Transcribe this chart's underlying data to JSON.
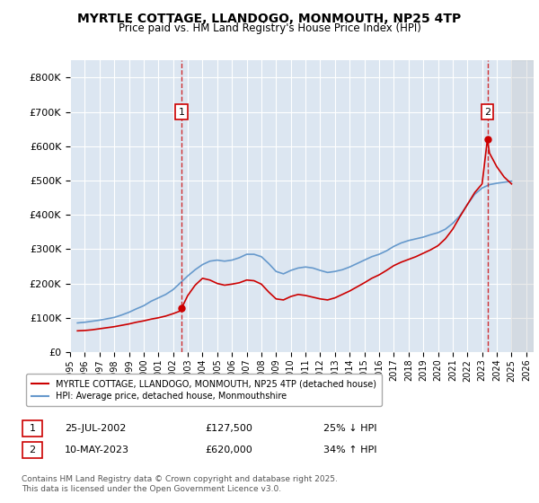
{
  "title": "MYRTLE COTTAGE, LLANDOGO, MONMOUTH, NP25 4TP",
  "subtitle": "Price paid vs. HM Land Registry's House Price Index (HPI)",
  "background_color": "#dce6f1",
  "plot_bg_color": "#dce6f1",
  "ylabel_color": "#222222",
  "ylim": [
    0,
    850000
  ],
  "yticks": [
    0,
    100000,
    200000,
    300000,
    400000,
    500000,
    600000,
    700000,
    800000
  ],
  "xlim_start": 1995,
  "xlim_end": 2026.5,
  "xticks": [
    1995,
    1996,
    1997,
    1998,
    1999,
    2000,
    2001,
    2002,
    2003,
    2004,
    2005,
    2006,
    2007,
    2008,
    2009,
    2010,
    2011,
    2012,
    2013,
    2014,
    2015,
    2016,
    2017,
    2018,
    2019,
    2020,
    2021,
    2022,
    2023,
    2024,
    2025,
    2026
  ],
  "red_line_color": "#cc0000",
  "blue_line_color": "#6699cc",
  "marker1_x": 2002.57,
  "marker1_y": 127500,
  "marker2_x": 2023.36,
  "marker2_y": 620000,
  "annotation1": {
    "label": "1",
    "date": "25-JUL-2002",
    "price": "£127,500",
    "pct": "25% ↓ HPI"
  },
  "annotation2": {
    "label": "2",
    "date": "10-MAY-2023",
    "price": "£620,000",
    "pct": "34% ↑ HPI"
  },
  "legend_label1": "MYRTLE COTTAGE, LLANDOGO, MONMOUTH, NP25 4TP (detached house)",
  "legend_label2": "HPI: Average price, detached house, Monmouthshire",
  "footnote": "Contains HM Land Registry data © Crown copyright and database right 2025.\nThis data is licensed under the Open Government Licence v3.0.",
  "hpi_data": {
    "years": [
      1995.5,
      1996.0,
      1996.5,
      1997.0,
      1997.5,
      1998.0,
      1998.5,
      1999.0,
      1999.5,
      2000.0,
      2000.5,
      2001.0,
      2001.5,
      2002.0,
      2002.5,
      2003.0,
      2003.5,
      2004.0,
      2004.5,
      2005.0,
      2005.5,
      2006.0,
      2006.5,
      2007.0,
      2007.5,
      2008.0,
      2008.5,
      2009.0,
      2009.5,
      2010.0,
      2010.5,
      2011.0,
      2011.5,
      2012.0,
      2012.5,
      2013.0,
      2013.5,
      2014.0,
      2014.5,
      2015.0,
      2015.5,
      2016.0,
      2016.5,
      2017.0,
      2017.5,
      2018.0,
      2018.5,
      2019.0,
      2019.5,
      2020.0,
      2020.5,
      2021.0,
      2021.5,
      2022.0,
      2022.5,
      2023.0,
      2023.5,
      2024.0,
      2024.5,
      2025.0
    ],
    "values": [
      85000,
      87000,
      90000,
      93000,
      97000,
      101000,
      108000,
      116000,
      126000,
      135000,
      148000,
      158000,
      168000,
      182000,
      202000,
      222000,
      240000,
      255000,
      265000,
      268000,
      265000,
      268000,
      275000,
      285000,
      285000,
      278000,
      258000,
      235000,
      228000,
      238000,
      245000,
      248000,
      245000,
      238000,
      232000,
      235000,
      240000,
      248000,
      258000,
      268000,
      278000,
      285000,
      295000,
      308000,
      318000,
      325000,
      330000,
      335000,
      342000,
      348000,
      358000,
      375000,
      398000,
      430000,
      460000,
      478000,
      488000,
      492000,
      495000,
      498000
    ]
  },
  "price_paid_data": {
    "years": [
      1995.5,
      1996.0,
      1996.5,
      1997.0,
      1997.5,
      1998.0,
      1998.5,
      1999.0,
      1999.5,
      2000.0,
      2000.5,
      2001.0,
      2001.5,
      2002.0,
      2002.5,
      2002.57,
      2003.0,
      2003.5,
      2004.0,
      2004.5,
      2005.0,
      2005.5,
      2006.0,
      2006.5,
      2007.0,
      2007.5,
      2008.0,
      2008.5,
      2009.0,
      2009.5,
      2010.0,
      2010.5,
      2011.0,
      2011.5,
      2012.0,
      2012.5,
      2013.0,
      2013.5,
      2014.0,
      2014.5,
      2015.0,
      2015.5,
      2016.0,
      2016.5,
      2017.0,
      2017.5,
      2018.0,
      2018.5,
      2019.0,
      2019.5,
      2020.0,
      2020.5,
      2021.0,
      2021.5,
      2022.0,
      2022.5,
      2023.0,
      2023.36,
      2023.5,
      2024.0,
      2024.5,
      2025.0
    ],
    "values": [
      62000,
      63000,
      65000,
      68000,
      71000,
      74000,
      78000,
      82000,
      87000,
      91000,
      96000,
      100000,
      105000,
      112000,
      120000,
      127500,
      165000,
      195000,
      215000,
      210000,
      200000,
      195000,
      198000,
      202000,
      210000,
      208000,
      198000,
      175000,
      155000,
      152000,
      162000,
      168000,
      165000,
      160000,
      155000,
      152000,
      158000,
      168000,
      178000,
      190000,
      202000,
      215000,
      225000,
      238000,
      252000,
      262000,
      270000,
      278000,
      288000,
      298000,
      310000,
      330000,
      358000,
      395000,
      430000,
      465000,
      490000,
      620000,
      580000,
      540000,
      510000,
      490000
    ]
  }
}
